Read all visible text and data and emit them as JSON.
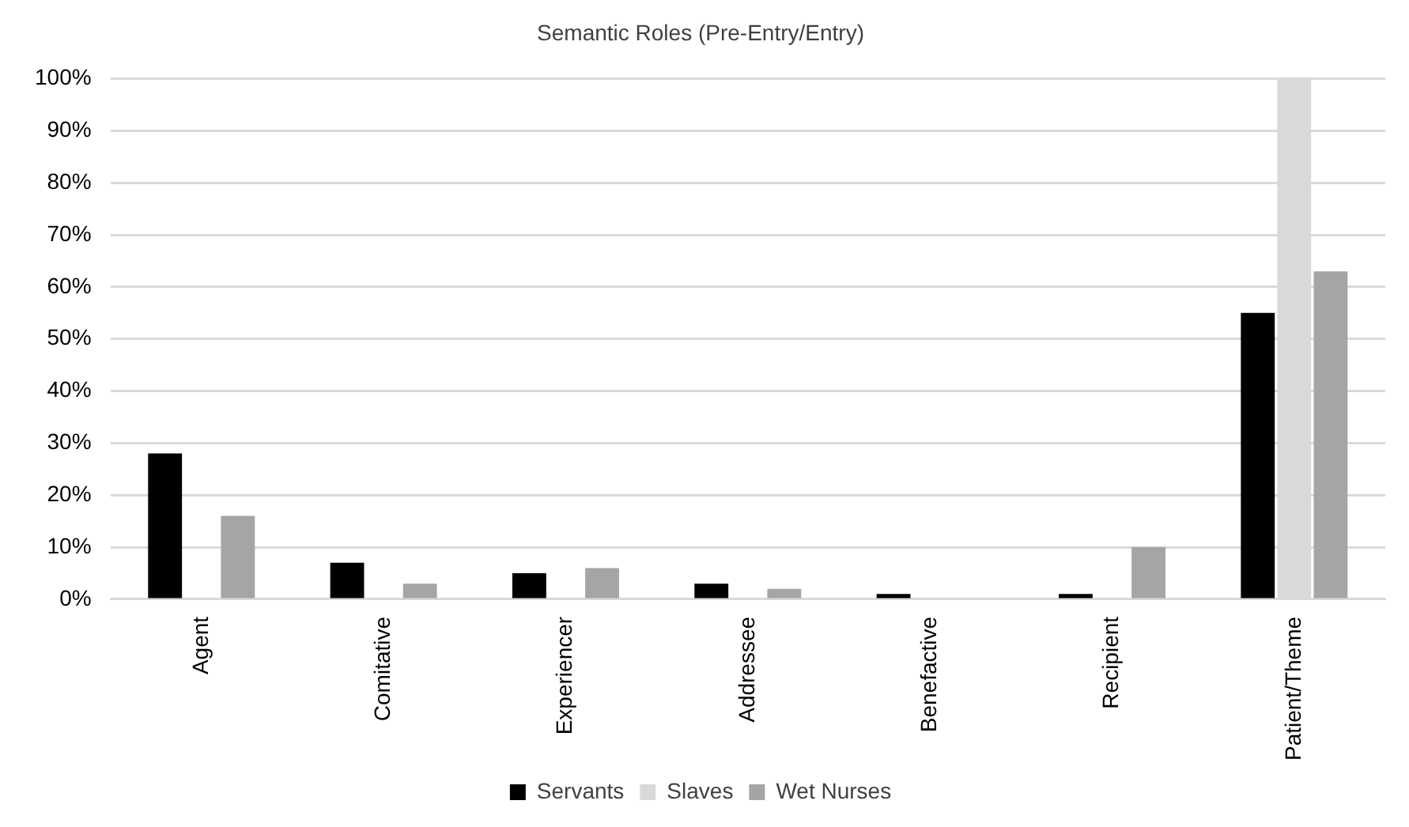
{
  "chart_data": {
    "type": "bar",
    "title": "Semantic Roles (Pre-Entry/Entry)",
    "categories": [
      "Agent",
      "Comitative",
      "Experiencer",
      "Addressee",
      "Benefactive",
      "Recipient",
      "Patient/Theme"
    ],
    "series": [
      {
        "name": "Servants",
        "color": "#000000",
        "values": [
          28,
          7,
          5,
          3,
          1,
          1,
          55
        ]
      },
      {
        "name": "Slaves",
        "color": "#d9d9d9",
        "values": [
          0,
          0,
          0,
          0,
          0,
          0,
          100
        ]
      },
      {
        "name": "Wet Nurses",
        "color": "#a5a5a5",
        "values": [
          16,
          3,
          6,
          2,
          0,
          10,
          63
        ]
      }
    ],
    "ylim": [
      0,
      100
    ],
    "yticks": [
      {
        "value": 0,
        "label": "0%"
      },
      {
        "value": 10,
        "label": "10%"
      },
      {
        "value": 20,
        "label": "20%"
      },
      {
        "value": 30,
        "label": "30%"
      },
      {
        "value": 40,
        "label": "40%"
      },
      {
        "value": 50,
        "label": "50%"
      },
      {
        "value": 60,
        "label": "60%"
      },
      {
        "value": 70,
        "label": "70%"
      },
      {
        "value": 80,
        "label": "80%"
      },
      {
        "value": 90,
        "label": "90%"
      },
      {
        "value": 100,
        "label": "100%"
      }
    ],
    "grid": "y",
    "legend": "bottom"
  }
}
